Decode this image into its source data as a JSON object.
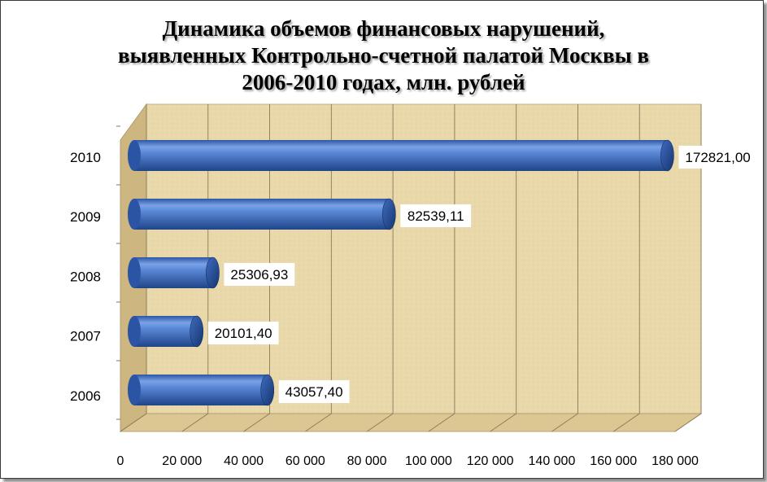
{
  "chart_data": {
    "type": "bar",
    "orientation": "horizontal",
    "title_lines": [
      "Динамика объемов финансовых нарушений,",
      "выявленных Контрольно-счетной палатой Москвы в",
      "2006-2010 годах, млн. рублей"
    ],
    "categories": [
      "2006",
      "2007",
      "2008",
      "2009",
      "2010"
    ],
    "values": [
      43057.4,
      20101.4,
      25306.93,
      82539.11,
      172821.0
    ],
    "data_labels": [
      "43057,40",
      "20101,40",
      "25306,93",
      "82539,11",
      "172821,00"
    ],
    "x_ticks": [
      0,
      20000,
      40000,
      60000,
      80000,
      100000,
      120000,
      140000,
      160000,
      180000
    ],
    "x_tick_labels": [
      "0",
      "20 000",
      "40 000",
      "60 000",
      "80 000",
      "100 000",
      "120 000",
      "140 000",
      "160 000",
      "180 000"
    ],
    "xlim": [
      0,
      180000
    ],
    "xlabel": "",
    "ylabel": "",
    "grid": true,
    "legend": "none",
    "style": "3d-cylinder",
    "colors": {
      "bar": "#4a78c8",
      "bar_dark": "#1f4489",
      "bar_light": "#a9c6f2",
      "wall": "#e8d6a8",
      "wall_side": "#cdb680",
      "floor": "#dcc793",
      "grid": "#8a7a5a",
      "label_bg": "#ffffff"
    }
  }
}
